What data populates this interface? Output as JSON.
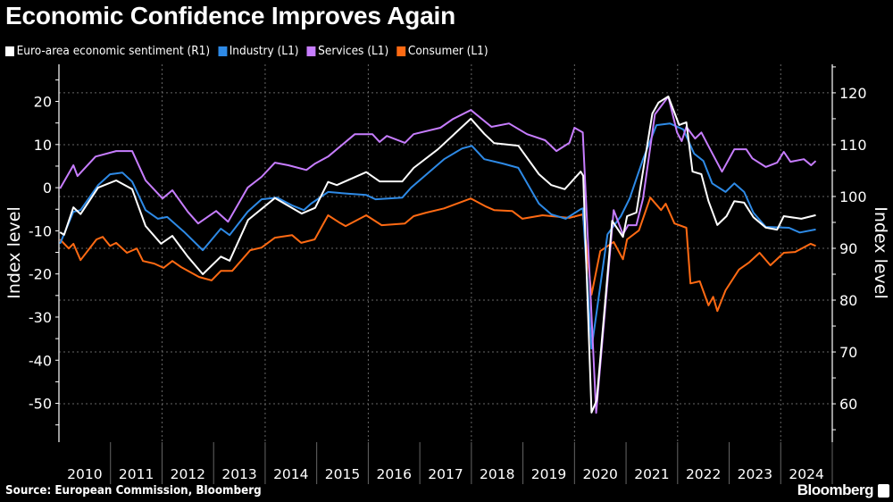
{
  "title": "Economic Confidence Improves Again",
  "source": "Source: European Commission, Bloomberg",
  "brand": "Bloomberg",
  "chart_data": {
    "type": "line",
    "title": "Economic Confidence Improves Again",
    "xlabel": "",
    "ylabel_left": "Index level",
    "ylabel_right": "Index level",
    "xlim": [
      2010,
      2025
    ],
    "ylim_left": [
      -59,
      28.6
    ],
    "ylim_right": [
      52.6,
      125.5
    ],
    "x_tick_labels": [
      "2010",
      "2011",
      "2012",
      "2013",
      "2014",
      "2015",
      "2016",
      "2017",
      "2018",
      "2019",
      "2020",
      "2021",
      "2022",
      "2023",
      "2024"
    ],
    "left_tick_labels": [
      20,
      10,
      0,
      -10,
      -20,
      -30,
      -40,
      -50
    ],
    "right_tick_labels": [
      120,
      110,
      100,
      90,
      80,
      70,
      60
    ],
    "grid": true,
    "legend_position": "top-left",
    "series": [
      {
        "name": "Euro-area economic sentiment (R1)",
        "axis": "right",
        "color": "#ffffff",
        "points": [
          [
            2010.02,
            93.1
          ],
          [
            2010.1,
            92.6
          ],
          [
            2010.28,
            97.9
          ],
          [
            2010.42,
            96.6
          ],
          [
            2010.76,
            101.7
          ],
          [
            2011.11,
            103.1
          ],
          [
            2011.42,
            101.4
          ],
          [
            2011.68,
            94.3
          ],
          [
            2011.98,
            90.9
          ],
          [
            2012.2,
            92.4
          ],
          [
            2012.5,
            88.4
          ],
          [
            2012.79,
            85.0
          ],
          [
            2013.14,
            88.4
          ],
          [
            2013.31,
            87.6
          ],
          [
            2013.67,
            95.5
          ],
          [
            2014.19,
            99.7
          ],
          [
            2014.71,
            96.7
          ],
          [
            2014.97,
            97.8
          ],
          [
            2015.22,
            102.8
          ],
          [
            2015.39,
            102.2
          ],
          [
            2015.96,
            104.7
          ],
          [
            2016.22,
            102.9
          ],
          [
            2016.66,
            102.9
          ],
          [
            2016.88,
            105.5
          ],
          [
            2017.35,
            109.1
          ],
          [
            2017.99,
            115.0
          ],
          [
            2018.25,
            112.1
          ],
          [
            2018.44,
            110.3
          ],
          [
            2018.91,
            109.8
          ],
          [
            2019.31,
            104.3
          ],
          [
            2019.55,
            102.2
          ],
          [
            2019.81,
            101.4
          ],
          [
            2020.12,
            104.8
          ],
          [
            2020.17,
            104.0
          ],
          [
            2020.33,
            58.3
          ],
          [
            2020.43,
            60.7
          ],
          [
            2020.73,
            95.3
          ],
          [
            2020.94,
            92.2
          ],
          [
            2021.02,
            96.2
          ],
          [
            2021.2,
            96.9
          ],
          [
            2021.51,
            116.0
          ],
          [
            2021.63,
            118.1
          ],
          [
            2021.82,
            119.3
          ],
          [
            2022.03,
            113.8
          ],
          [
            2022.17,
            114.3
          ],
          [
            2022.29,
            104.8
          ],
          [
            2022.46,
            104.3
          ],
          [
            2022.6,
            99.1
          ],
          [
            2022.77,
            94.5
          ],
          [
            2022.95,
            96.2
          ],
          [
            2023.1,
            99.1
          ],
          [
            2023.29,
            98.8
          ],
          [
            2023.47,
            96.0
          ],
          [
            2023.71,
            94.0
          ],
          [
            2023.93,
            93.6
          ],
          [
            2024.06,
            96.2
          ],
          [
            2024.4,
            95.7
          ],
          [
            2024.68,
            96.4
          ]
        ]
      },
      {
        "name": "Industry (L1)",
        "axis": "left",
        "color": "#2e8ae6",
        "points": [
          [
            2010.02,
            -13.0
          ],
          [
            2010.28,
            -5.6
          ],
          [
            2010.42,
            -5.2
          ],
          [
            2010.76,
            0.6
          ],
          [
            2010.99,
            3.1
          ],
          [
            2011.23,
            3.5
          ],
          [
            2011.42,
            1.4
          ],
          [
            2011.68,
            -5.2
          ],
          [
            2011.92,
            -7.2
          ],
          [
            2012.1,
            -6.8
          ],
          [
            2012.44,
            -10.4
          ],
          [
            2012.79,
            -14.5
          ],
          [
            2013.14,
            -9.5
          ],
          [
            2013.31,
            -11.0
          ],
          [
            2013.66,
            -5.6
          ],
          [
            2013.93,
            -2.7
          ],
          [
            2014.23,
            -2.3
          ],
          [
            2014.52,
            -4.1
          ],
          [
            2014.75,
            -5.2
          ],
          [
            2014.89,
            -3.7
          ],
          [
            2015.22,
            -1.0
          ],
          [
            2015.62,
            -1.4
          ],
          [
            2015.96,
            -1.7
          ],
          [
            2016.14,
            -2.7
          ],
          [
            2016.66,
            -2.3
          ],
          [
            2016.83,
            0.0
          ],
          [
            2017.47,
            6.6
          ],
          [
            2017.82,
            9.1
          ],
          [
            2018.01,
            9.7
          ],
          [
            2018.25,
            6.6
          ],
          [
            2018.61,
            5.6
          ],
          [
            2018.91,
            4.6
          ],
          [
            2019.31,
            -3.7
          ],
          [
            2019.55,
            -6.2
          ],
          [
            2019.83,
            -7.2
          ],
          [
            2020.12,
            -5.0
          ],
          [
            2020.16,
            -4.8
          ],
          [
            2020.33,
            -37.3
          ],
          [
            2020.64,
            -10.8
          ],
          [
            2020.9,
            -6.6
          ],
          [
            2021.07,
            -2.5
          ],
          [
            2021.33,
            6.6
          ],
          [
            2021.59,
            14.5
          ],
          [
            2021.85,
            14.9
          ],
          [
            2022.11,
            13.5
          ],
          [
            2022.32,
            7.9
          ],
          [
            2022.5,
            6.2
          ],
          [
            2022.67,
            1.0
          ],
          [
            2022.93,
            -1.0
          ],
          [
            2023.1,
            1.0
          ],
          [
            2023.29,
            -1.0
          ],
          [
            2023.47,
            -5.8
          ],
          [
            2023.71,
            -9.1
          ],
          [
            2024.16,
            -9.3
          ],
          [
            2024.37,
            -10.4
          ],
          [
            2024.68,
            -9.7
          ]
        ]
      },
      {
        "name": "Services (L1)",
        "axis": "left",
        "color": "#c77dff",
        "points": [
          [
            2010.02,
            -0.2
          ],
          [
            2010.28,
            5.2
          ],
          [
            2010.36,
            2.7
          ],
          [
            2010.71,
            7.2
          ],
          [
            2011.11,
            8.5
          ],
          [
            2011.42,
            8.5
          ],
          [
            2011.68,
            1.7
          ],
          [
            2012.01,
            -2.5
          ],
          [
            2012.2,
            -0.6
          ],
          [
            2012.5,
            -5.6
          ],
          [
            2012.7,
            -8.3
          ],
          [
            2013.05,
            -5.4
          ],
          [
            2013.28,
            -7.9
          ],
          [
            2013.66,
            0.0
          ],
          [
            2013.93,
            2.5
          ],
          [
            2014.19,
            5.8
          ],
          [
            2014.45,
            5.2
          ],
          [
            2014.8,
            4.1
          ],
          [
            2014.97,
            5.6
          ],
          [
            2015.22,
            7.2
          ],
          [
            2015.74,
            12.4
          ],
          [
            2016.08,
            12.4
          ],
          [
            2016.22,
            10.6
          ],
          [
            2016.36,
            12.0
          ],
          [
            2016.71,
            10.4
          ],
          [
            2016.88,
            12.4
          ],
          [
            2017.4,
            13.9
          ],
          [
            2017.64,
            15.9
          ],
          [
            2017.99,
            18.0
          ],
          [
            2018.39,
            14.1
          ],
          [
            2018.73,
            14.9
          ],
          [
            2019.08,
            12.4
          ],
          [
            2019.43,
            11.0
          ],
          [
            2019.65,
            8.5
          ],
          [
            2019.9,
            10.4
          ],
          [
            2020.0,
            13.9
          ],
          [
            2020.16,
            12.8
          ],
          [
            2020.42,
            -52.2
          ],
          [
            2020.76,
            -5.2
          ],
          [
            2020.94,
            -10.8
          ],
          [
            2021.04,
            -8.7
          ],
          [
            2021.2,
            -8.7
          ],
          [
            2021.33,
            -2.5
          ],
          [
            2021.56,
            17.0
          ],
          [
            2021.82,
            21.1
          ],
          [
            2021.99,
            12.8
          ],
          [
            2022.08,
            10.8
          ],
          [
            2022.17,
            14.1
          ],
          [
            2022.34,
            11.4
          ],
          [
            2022.46,
            12.8
          ],
          [
            2022.63,
            8.9
          ],
          [
            2022.86,
            3.7
          ],
          [
            2023.1,
            8.9
          ],
          [
            2023.33,
            8.9
          ],
          [
            2023.45,
            6.8
          ],
          [
            2023.71,
            4.8
          ],
          [
            2023.93,
            5.8
          ],
          [
            2024.06,
            8.3
          ],
          [
            2024.19,
            6.0
          ],
          [
            2024.45,
            6.6
          ],
          [
            2024.59,
            5.2
          ],
          [
            2024.68,
            6.2
          ]
        ]
      },
      {
        "name": "Consumer (L1)",
        "axis": "left",
        "color": "#ff6a13",
        "points": [
          [
            2010.02,
            -12.0
          ],
          [
            2010.19,
            -14.1
          ],
          [
            2010.28,
            -13.0
          ],
          [
            2010.42,
            -16.8
          ],
          [
            2010.73,
            -12.0
          ],
          [
            2010.85,
            -11.4
          ],
          [
            2010.99,
            -13.5
          ],
          [
            2011.11,
            -12.8
          ],
          [
            2011.32,
            -15.1
          ],
          [
            2011.51,
            -14.1
          ],
          [
            2011.63,
            -17.0
          ],
          [
            2011.85,
            -17.6
          ],
          [
            2012.03,
            -18.6
          ],
          [
            2012.2,
            -17.0
          ],
          [
            2012.37,
            -18.4
          ],
          [
            2012.72,
            -20.7
          ],
          [
            2012.96,
            -21.5
          ],
          [
            2013.14,
            -19.3
          ],
          [
            2013.36,
            -19.3
          ],
          [
            2013.71,
            -14.5
          ],
          [
            2013.93,
            -13.9
          ],
          [
            2014.19,
            -11.6
          ],
          [
            2014.52,
            -11.0
          ],
          [
            2014.7,
            -12.8
          ],
          [
            2014.96,
            -12.0
          ],
          [
            2015.22,
            -6.4
          ],
          [
            2015.44,
            -8.1
          ],
          [
            2015.56,
            -8.9
          ],
          [
            2015.96,
            -6.4
          ],
          [
            2016.26,
            -8.7
          ],
          [
            2016.71,
            -8.3
          ],
          [
            2016.88,
            -6.6
          ],
          [
            2017.12,
            -5.8
          ],
          [
            2017.47,
            -4.8
          ],
          [
            2017.99,
            -2.5
          ],
          [
            2018.27,
            -4.3
          ],
          [
            2018.44,
            -5.2
          ],
          [
            2018.79,
            -5.4
          ],
          [
            2018.99,
            -7.2
          ],
          [
            2019.38,
            -6.4
          ],
          [
            2019.9,
            -7.0
          ],
          [
            2020.16,
            -6.2
          ],
          [
            2020.33,
            -24.8
          ],
          [
            2020.5,
            -14.7
          ],
          [
            2020.76,
            -12.6
          ],
          [
            2020.94,
            -16.6
          ],
          [
            2021.02,
            -12.0
          ],
          [
            2021.25,
            -9.9
          ],
          [
            2021.47,
            -2.3
          ],
          [
            2021.68,
            -5.2
          ],
          [
            2021.77,
            -3.7
          ],
          [
            2021.94,
            -8.3
          ],
          [
            2022.17,
            -9.3
          ],
          [
            2022.25,
            -22.2
          ],
          [
            2022.43,
            -21.7
          ],
          [
            2022.6,
            -27.3
          ],
          [
            2022.69,
            -25.3
          ],
          [
            2022.77,
            -28.6
          ],
          [
            2022.93,
            -23.8
          ],
          [
            2023.19,
            -19.0
          ],
          [
            2023.38,
            -17.4
          ],
          [
            2023.59,
            -15.1
          ],
          [
            2023.8,
            -18.0
          ],
          [
            2024.06,
            -15.1
          ],
          [
            2024.28,
            -14.9
          ],
          [
            2024.58,
            -13.0
          ],
          [
            2024.68,
            -13.5
          ]
        ]
      }
    ]
  }
}
